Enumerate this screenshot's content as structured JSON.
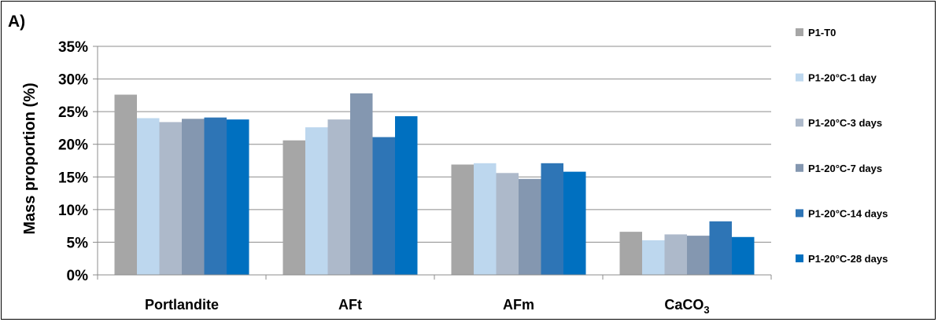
{
  "panel_label": "A)",
  "chart_data": {
    "type": "bar",
    "title": "",
    "xlabel": "",
    "ylabel": "Mass proportion (%)",
    "ylim": [
      0,
      35
    ],
    "yticks": [
      0,
      5,
      10,
      15,
      20,
      25,
      30,
      35
    ],
    "ytick_labels": [
      "0%",
      "5%",
      "10%",
      "15%",
      "20%",
      "25%",
      "30%",
      "35%"
    ],
    "grid": true,
    "legend_position": "right",
    "categories": [
      {
        "label": "Portlandite",
        "sub": ""
      },
      {
        "label": "AFt",
        "sub": ""
      },
      {
        "label": "AFm",
        "sub": ""
      },
      {
        "label": "CaCO",
        "sub": "3"
      }
    ],
    "series": [
      {
        "name": "P1-T0",
        "color": "#a6a6a6",
        "values": [
          27.6,
          20.6,
          16.9,
          6.6
        ]
      },
      {
        "name": "P1-20°C-1 day",
        "color": "#bdd7ee",
        "values": [
          24.0,
          22.6,
          17.1,
          5.3
        ]
      },
      {
        "name": "P1-20°C-3 days",
        "color": "#adb9ca",
        "values": [
          23.4,
          23.8,
          15.6,
          6.2
        ]
      },
      {
        "name": "P1-20°C-7 days",
        "color": "#8497b0",
        "values": [
          23.9,
          27.8,
          14.7,
          6.0
        ]
      },
      {
        "name": "P1-20°C-14 days",
        "color": "#2e75b6",
        "values": [
          24.1,
          21.1,
          17.1,
          8.2
        ]
      },
      {
        "name": "P1-20°C-28 days",
        "color": "#0070c0",
        "values": [
          23.8,
          24.3,
          15.8,
          5.8
        ]
      }
    ]
  }
}
